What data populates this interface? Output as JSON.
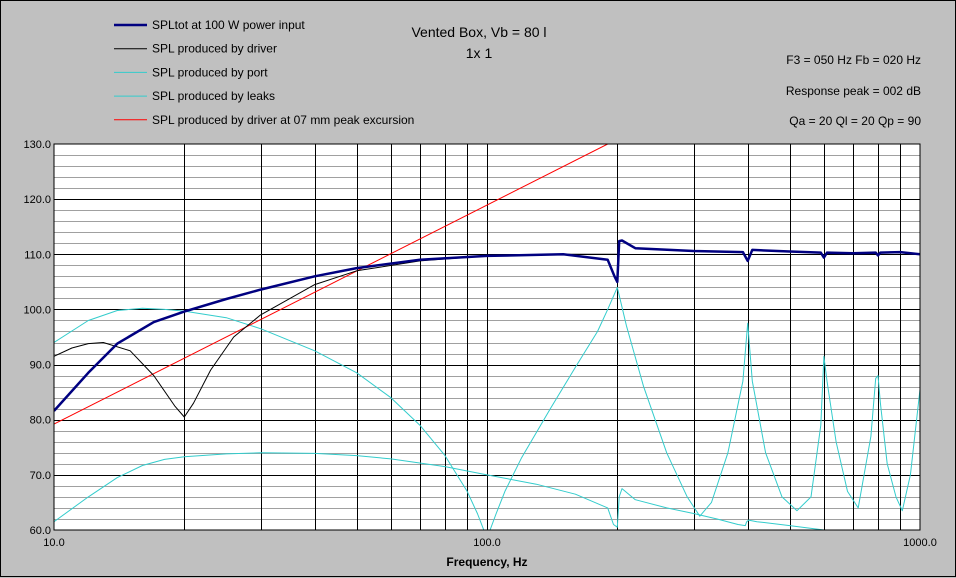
{
  "title": {
    "line1": "Vented Box, Vb = 80 l",
    "line2": "1x 1"
  },
  "info": {
    "line1": "F3 = 050 Hz  Fb = 020 Hz",
    "line2": "Response peak = 002 dB",
    "line3": "Qa = 20  Ql = 20  Qp = 90"
  },
  "colors": {
    "background": "#c0c0c0",
    "plot_area": "#ffffff",
    "total": "#000080",
    "driver": "#000000",
    "port": "#33cccc",
    "leaks": "#33cccc",
    "excursion": "#ff0000",
    "major_grid": "#000000",
    "minor_grid": "#a0a0a0"
  },
  "chart_data": {
    "type": "line",
    "xlabel": "Frequency, Hz",
    "ylabel": "",
    "xscale": "log",
    "xlim": [
      10,
      1000
    ],
    "ylim": [
      60,
      130
    ],
    "x_ticks": [
      "10.0",
      "100.0",
      "1000.0"
    ],
    "y_ticks": [
      "60.0",
      "70.0",
      "80.0",
      "90.0",
      "100.0",
      "110.0",
      "120.0",
      "130.0"
    ],
    "legend_position": "top-left",
    "grid": true,
    "series": [
      {
        "name": "SPLtot at 100 W power input",
        "key": "total",
        "x": [
          10,
          12,
          14,
          17,
          20,
          25,
          30,
          40,
          50,
          70,
          100,
          150,
          190,
          197,
          200,
          202,
          205,
          220,
          300,
          390,
          400,
          410,
          500,
          590,
          600,
          610,
          700,
          790,
          800,
          810,
          900,
          1000
        ],
        "y": [
          81.6,
          88.5,
          93.8,
          97.7,
          99.6,
          101.9,
          103.6,
          106.0,
          107.5,
          109.0,
          109.7,
          110.0,
          109.0,
          106.0,
          105.0,
          112.4,
          112.5,
          111.1,
          110.6,
          110.4,
          108.8,
          110.8,
          110.5,
          110.3,
          109.4,
          110.3,
          110.2,
          110.3,
          109.8,
          110.3,
          110.4,
          110.0
        ]
      },
      {
        "name": "SPL produced by driver",
        "key": "driver",
        "x": [
          10,
          11,
          12,
          13,
          15,
          17,
          19,
          20,
          21,
          23,
          26,
          30,
          40,
          50,
          70,
          100,
          150,
          200
        ],
        "y": [
          91.5,
          93.0,
          93.8,
          94.0,
          92.5,
          88.0,
          82.5,
          80.5,
          83.0,
          89.0,
          95.0,
          99.0,
          104.5,
          107.0,
          108.8,
          109.7,
          110.0,
          110.0
        ]
      },
      {
        "name": "SPL produced by port",
        "key": "port",
        "x": [
          10,
          12,
          14,
          16,
          18,
          20,
          25,
          30,
          40,
          50,
          60,
          70,
          80,
          90,
          95,
          100,
          105,
          110,
          120,
          140,
          160,
          180,
          190,
          200,
          210,
          230,
          260,
          290,
          310,
          330,
          360,
          390,
          400,
          410,
          440,
          480,
          520,
          560,
          590,
          600,
          610,
          640,
          680,
          720,
          770,
          790,
          800,
          810,
          840,
          880,
          910,
          950,
          1000
        ],
        "y": [
          94.0,
          98.0,
          99.8,
          100.2,
          100.0,
          99.7,
          98.5,
          96.5,
          92.5,
          88.5,
          84.0,
          79.0,
          73.5,
          67.0,
          63.0,
          58.5,
          63.0,
          67.0,
          73.0,
          82.0,
          89.5,
          96.0,
          100.0,
          104.0,
          97.0,
          86.0,
          74.0,
          66.0,
          62.5,
          65.0,
          74.0,
          87.0,
          97.5,
          87.0,
          74.0,
          66.0,
          63.5,
          66.0,
          79.0,
          91.5,
          87.0,
          76.0,
          67.0,
          64.0,
          77.0,
          87.5,
          88.0,
          83.0,
          72.0,
          66.0,
          63.5,
          70.0,
          85.5
        ]
      },
      {
        "name": "SPL produced by leaks",
        "key": "leaks",
        "x": [
          10,
          12,
          14,
          16,
          18,
          20,
          25,
          30,
          40,
          50,
          60,
          80,
          100,
          130,
          160,
          190,
          196,
          200,
          202,
          205,
          220,
          260,
          300,
          340,
          380,
          395,
          398,
          402,
          420,
          500,
          600,
          700
        ],
        "y": [
          61.5,
          66.0,
          69.5,
          71.7,
          72.8,
          73.3,
          73.8,
          74.0,
          73.9,
          73.5,
          72.9,
          71.5,
          70.0,
          68.3,
          66.5,
          64.0,
          61.0,
          60.5,
          66.0,
          67.5,
          65.5,
          64.0,
          63.0,
          62.0,
          61.0,
          60.8,
          61.5,
          61.8,
          61.5,
          60.8,
          60.0,
          59.5
        ]
      },
      {
        "name": "SPL produced by driver at 07 mm peak excursion",
        "key": "excursion",
        "x": [
          10,
          190
        ],
        "y": [
          79.2,
          130.0
        ]
      }
    ]
  }
}
